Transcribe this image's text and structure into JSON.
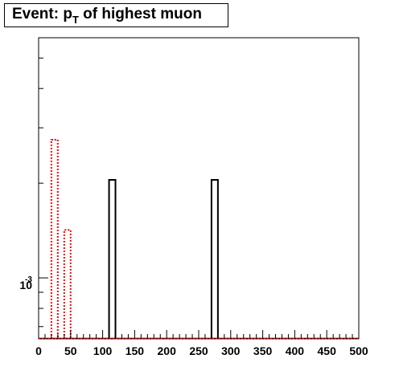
{
  "chart_data": {
    "type": "bar",
    "title": {
      "prefix": "Event: p",
      "subscript": "T",
      "suffix": " of highest muon"
    },
    "xlabel": "",
    "ylabel": "",
    "xlim": [
      0,
      500
    ],
    "ylim": [
      0.00064,
      0.0058
    ],
    "log_y": true,
    "bin_width": 10,
    "x_ticks": [
      "0",
      "50",
      "100",
      "150",
      "200",
      "250",
      "300",
      "350",
      "400",
      "450",
      "500"
    ],
    "y_tick_label": {
      "base": "10",
      "exponent": "-3"
    },
    "series": [
      {
        "color": "#000000",
        "line_style": "solid",
        "bins": [
          {
            "x_low": 110,
            "x_high": 120,
            "value": 0.00205
          },
          {
            "x_low": 270,
            "x_high": 280,
            "value": 0.00205
          }
        ]
      },
      {
        "color": "#ff0000",
        "line_style": "dotted",
        "bins": [
          {
            "x_low": 20,
            "x_high": 30,
            "value": 0.00275
          },
          {
            "x_low": 40,
            "x_high": 50,
            "value": 0.00142
          }
        ]
      }
    ]
  }
}
